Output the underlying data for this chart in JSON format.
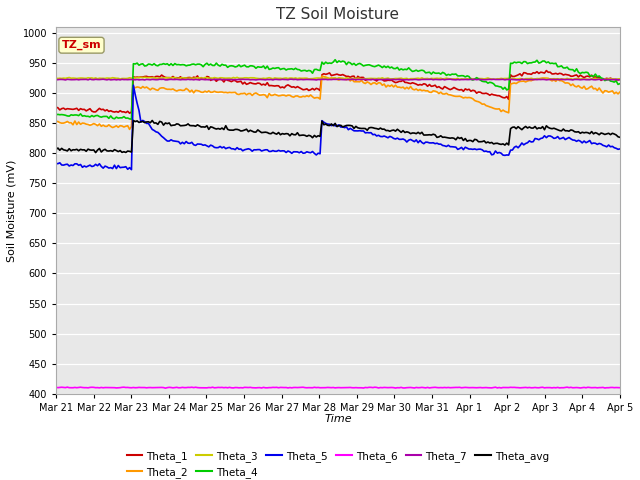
{
  "title": "TZ Soil Moisture",
  "xlabel": "Time",
  "ylabel": "Soil Moisture (mV)",
  "ylim": [
    400,
    1010
  ],
  "yticks": [
    400,
    450,
    500,
    550,
    600,
    650,
    700,
    750,
    800,
    850,
    900,
    950,
    1000
  ],
  "fig_bg": "#ffffff",
  "plot_bg": "#e8e8e8",
  "annotation_text": "TZ_sm",
  "annotation_color": "#cc0000",
  "annotation_bg": "#ffffcc",
  "series": {
    "Theta_1": {
      "color": "#cc0000",
      "lw": 1.2
    },
    "Theta_2": {
      "color": "#ff9900",
      "lw": 1.2
    },
    "Theta_3": {
      "color": "#cccc00",
      "lw": 1.2
    },
    "Theta_4": {
      "color": "#00cc00",
      "lw": 1.2
    },
    "Theta_5": {
      "color": "#0000ee",
      "lw": 1.2
    },
    "Theta_6": {
      "color": "#ff00ff",
      "lw": 1.2
    },
    "Theta_7": {
      "color": "#aa00aa",
      "lw": 1.2
    },
    "Theta_avg": {
      "color": "#000000",
      "lw": 1.2
    }
  },
  "x_dates": [
    "Mar 21",
    "Mar 22",
    "Mar 23",
    "Mar 24",
    "Mar 25",
    "Mar 26",
    "Mar 27",
    "Mar 28",
    "Mar 29",
    "Mar 30",
    "Mar 31",
    "Apr 1",
    "Apr 2",
    "Apr 3",
    "Apr 4",
    "Apr 5"
  ]
}
